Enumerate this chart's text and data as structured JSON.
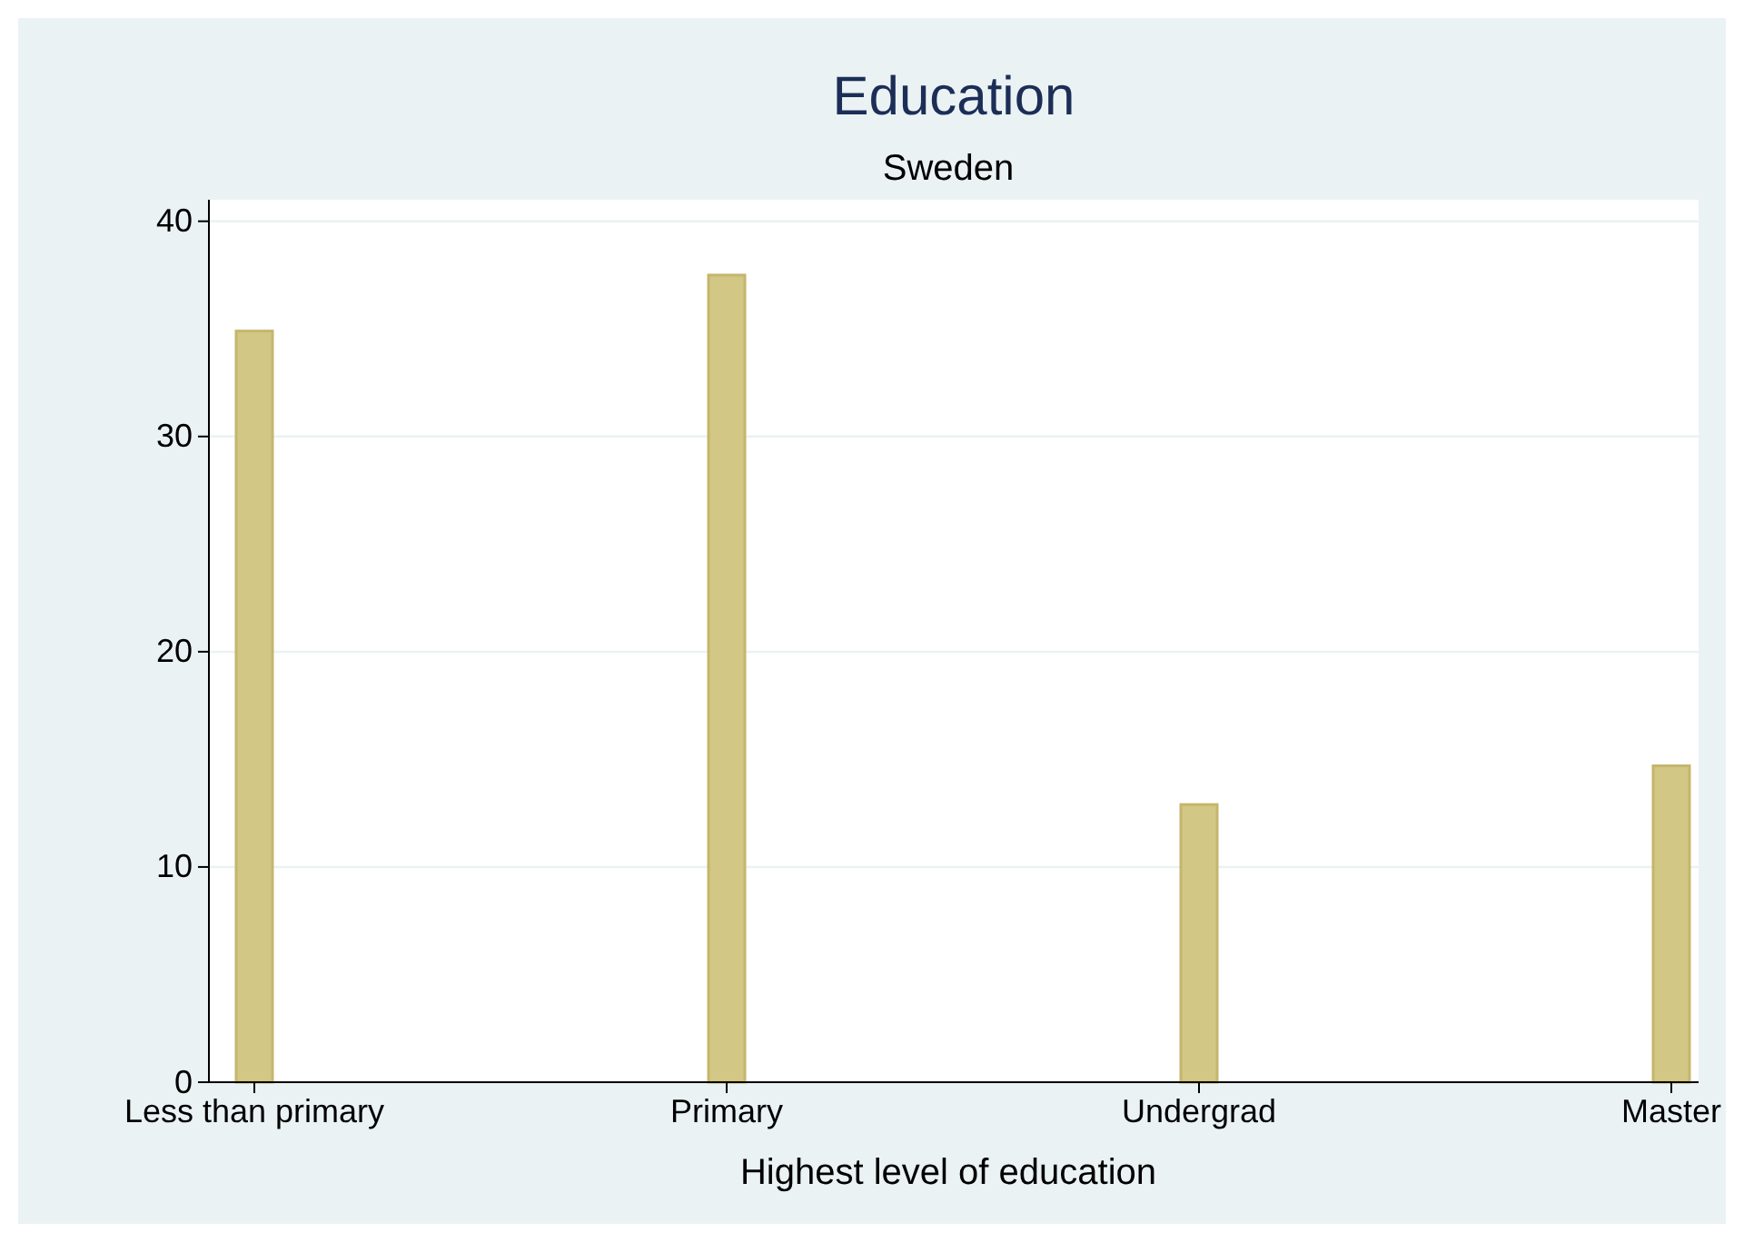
{
  "chart_data": {
    "type": "bar",
    "title": "Education",
    "subtitle": "Sweden",
    "xlabel": "Highest level of education",
    "categories": [
      "Less than primary",
      "Primary",
      "Undergrad",
      "Master"
    ],
    "values": [
      34.9,
      37.5,
      12.9,
      14.7
    ],
    "color": "#d3c785",
    "ylim": [
      0,
      41
    ],
    "yticks": [
      0,
      10,
      20,
      30,
      40
    ],
    "grid": "y"
  }
}
